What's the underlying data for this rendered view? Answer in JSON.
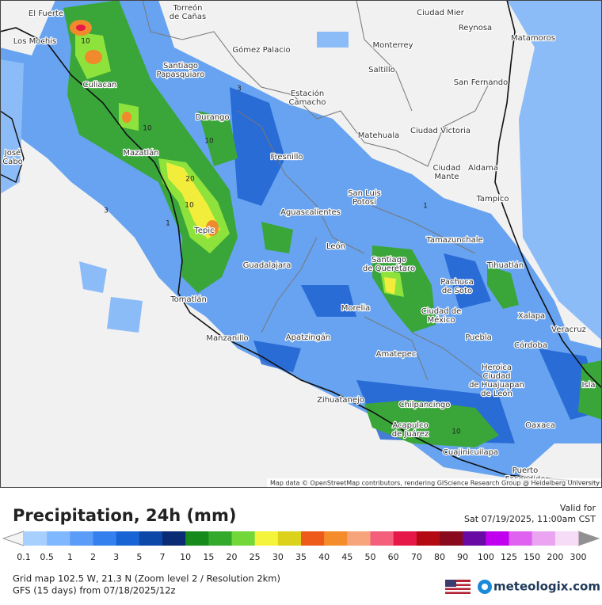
{
  "attribution": "Map data © OpenStreetMap contributors, rendering GIScience Research Group @ Heidelberg University",
  "cities": [
    [
      "El Fuerte"
    ],
    [
      "Los Mochis"
    ],
    [
      "Culiacan"
    ],
    [
      "Torreón",
      "de Cañas"
    ],
    [
      "Santiago",
      "Papasquiaro"
    ],
    [
      "Gómez Palacio"
    ],
    [
      "Ciudad Mier"
    ],
    [
      "Reynosa"
    ],
    [
      "Matamoros"
    ],
    [
      "Monterrey"
    ],
    [
      "Saltillo"
    ],
    [
      "San Fernando"
    ],
    [
      "Estación",
      "Camacho"
    ],
    [
      "Durango"
    ],
    [
      "Matehuala"
    ],
    [
      "Ciudad Victoria"
    ],
    [
      "José",
      "Cabo"
    ],
    [
      "Mazatlán"
    ],
    [
      "Fresnillo"
    ],
    [
      "Ciudad",
      "Mante"
    ],
    [
      "Aldama"
    ],
    [
      "San Luis",
      "Potosí"
    ],
    [
      "Tampico"
    ],
    [
      "Aguascalientes"
    ],
    [
      "Tamazunchale"
    ],
    [
      "Tepic"
    ],
    [
      "León"
    ],
    [
      "Santiago",
      "de Querétaro"
    ],
    [
      "Tihuatlán"
    ],
    [
      "Guadalajara"
    ],
    [
      "Pachuca",
      "de Soto"
    ],
    [
      "Morelia"
    ],
    [
      "Ciudad de",
      "México"
    ],
    [
      "Xalapa"
    ],
    [
      "Tomatlán"
    ],
    [
      "Veracruz"
    ],
    [
      "Manzanillo"
    ],
    [
      "Apatzingán"
    ],
    [
      "Puebla"
    ],
    [
      "Córdoba"
    ],
    [
      "Amatepec"
    ],
    [
      "Heroica",
      "Ciudad",
      "de Huajuapan",
      "de León"
    ],
    [
      "Isla"
    ],
    [
      "Zihuatanejo"
    ],
    [
      "Chilpancingo"
    ],
    [
      "Oaxaca"
    ],
    [
      "Acapulco",
      "de Juárez"
    ],
    [
      "Cuajinicuilapa"
    ],
    [
      "Puerto",
      "Escondido"
    ]
  ],
  "contours": [
    "10",
    "10",
    "20",
    "10",
    "10",
    "3",
    "3",
    "1",
    "1",
    "10"
  ],
  "title": "Precipitation, 24h (mm)",
  "valid_label": "Valid for",
  "valid_time": "Sat 07/19/2025, 11:00am CST",
  "legend": {
    "labels": [
      "0.1",
      "0.5",
      "1",
      "2",
      "3",
      "5",
      "7",
      "10",
      "15",
      "20",
      "25",
      "30",
      "35",
      "40",
      "45",
      "50",
      "60",
      "70",
      "80",
      "90",
      "100",
      "125",
      "150",
      "200",
      "300"
    ],
    "colors": [
      "#a8d0ff",
      "#80b8ff",
      "#5a9cf8",
      "#3480ee",
      "#1964d4",
      "#0c48a8",
      "#0a2c74",
      "#168a1a",
      "#34aa2c",
      "#72d83a",
      "#f4f43c",
      "#dcd21c",
      "#ee5a1a",
      "#f58c2c",
      "#f7a47c",
      "#f4607c",
      "#e61848",
      "#b40a12",
      "#880a1c",
      "#6a0aa4",
      "#c200f0",
      "#e062f0",
      "#eaa4f2",
      "#f6dcf6"
    ]
  },
  "grid_info": "Grid map 102.5 W, 21.3 N (Zoom level 2 / Resolution 2km)",
  "model_info": "GFS (15 days) from  07/18/2025/12z",
  "brand": "meteologix.com"
}
